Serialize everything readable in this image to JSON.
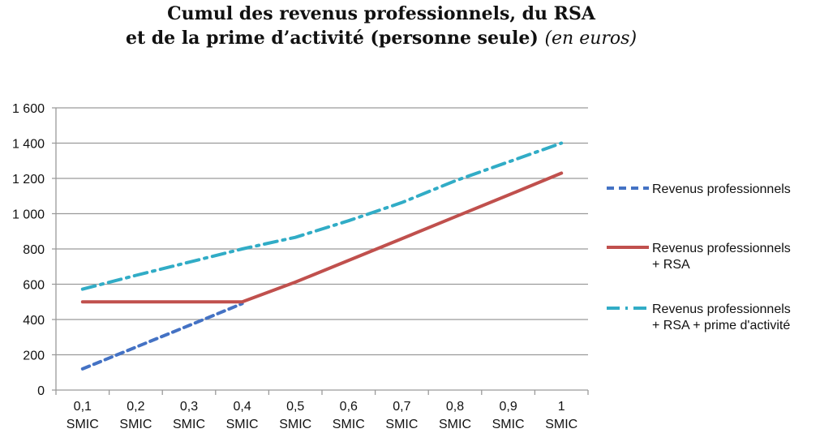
{
  "chart_data": {
    "type": "line",
    "title": "Cumul des revenus professionnels, du RSA",
    "title_line2": "et de la prime d’activité (personne seule)",
    "title_unit": "(en euros)",
    "categories": [
      "0,1 SMIC",
      "0,2 SMIC",
      "0,3 SMIC",
      "0,4 SMIC",
      "0,5 SMIC",
      "0,6 SMIC",
      "0,7 SMIC",
      "0,8 SMIC",
      "0,9 SMIC",
      "1 SMIC"
    ],
    "x": [
      0.1,
      0.2,
      0.3,
      0.4,
      0.5,
      0.6,
      0.7,
      0.8,
      0.9,
      1
    ],
    "ylim": [
      0,
      1600
    ],
    "yticks": [
      0,
      200,
      400,
      600,
      800,
      1000,
      1200,
      1400,
      1600
    ],
    "ytick_labels": [
      "0",
      "200",
      "400",
      "600",
      "800",
      "1 000",
      "1 200",
      "1 400",
      "1 600"
    ],
    "grid": "horizontal",
    "legend": "right",
    "series": [
      {
        "name": "Revenus professionnels",
        "legend_lines": [
          "Revenus professionnels"
        ],
        "color": "#4472c4",
        "style": "dashed",
        "values": [
          120,
          243,
          366,
          490,
          612,
          735,
          858,
          982,
          1105,
          1230
        ],
        "visible_until": 0.4
      },
      {
        "name": "Revenus professionnels + RSA",
        "legend_lines": [
          "Revenus professionnels",
          "+ RSA"
        ],
        "color": "#c0504d",
        "style": "solid",
        "values": [
          500,
          500,
          500,
          500,
          612,
          735,
          858,
          982,
          1105,
          1230
        ]
      },
      {
        "name": "Revenus professionnels + RSA + prime d'activité",
        "legend_lines": [
          "Revenus professionnels",
          "+ RSA + prime d'activité"
        ],
        "color": "#31acc6",
        "style": "dashdot",
        "values": [
          572,
          650,
          725,
          800,
          866,
          960,
          1063,
          1186,
          1293,
          1400
        ]
      }
    ]
  }
}
